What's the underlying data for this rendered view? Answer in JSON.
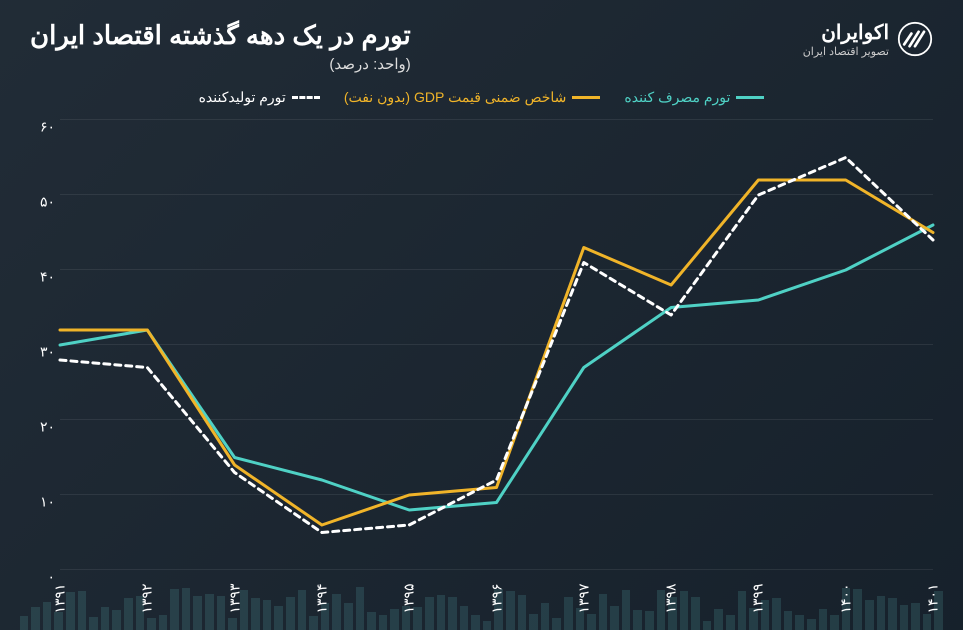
{
  "title": "تورم در یک دهه گذشته اقتصاد ایران",
  "subtitle": "(واحد: درصد)",
  "brand": {
    "name": "اکوایران",
    "tagline": "تصویر اقتصاد ایران"
  },
  "chart": {
    "type": "line",
    "ylim": [
      0,
      60
    ],
    "yticks": [
      0,
      10,
      20,
      30,
      40,
      50,
      60
    ],
    "ytick_labels": [
      "۰",
      "۱۰",
      "۲۰",
      "۳۰",
      "۴۰",
      "۵۰",
      "۶۰"
    ],
    "categories": [
      "۱۳۹۱",
      "۱۳۹۲",
      "۱۳۹۳",
      "۱۳۹۴",
      "۱۳۹۵",
      "۱۳۹۶",
      "۱۳۹۷",
      "۱۳۹۸",
      "۱۳۹۹",
      "۱۴۰۰",
      "۱۴۰۱"
    ],
    "background_color": "#1a2530",
    "grid_color": "rgba(255,255,255,0.08)",
    "line_width": 3,
    "series": [
      {
        "name": "تورم مصرف کننده",
        "color": "#4fd1c5",
        "dash": "none",
        "values": [
          30,
          32,
          15,
          12,
          8,
          9,
          27,
          35,
          36,
          40,
          46
        ]
      },
      {
        "name": "شاخص ضمنی قیمت GDP (بدون نفت)",
        "color": "#f0b429",
        "dash": "none",
        "values": [
          32,
          32,
          14,
          6,
          10,
          11,
          43,
          38,
          52,
          52,
          45
        ]
      },
      {
        "name": "تورم تولیدکننده",
        "color": "#ffffff",
        "dash": "6,5",
        "values": [
          28,
          27,
          13,
          5,
          6,
          12,
          41,
          34,
          50,
          55,
          44
        ]
      }
    ]
  }
}
